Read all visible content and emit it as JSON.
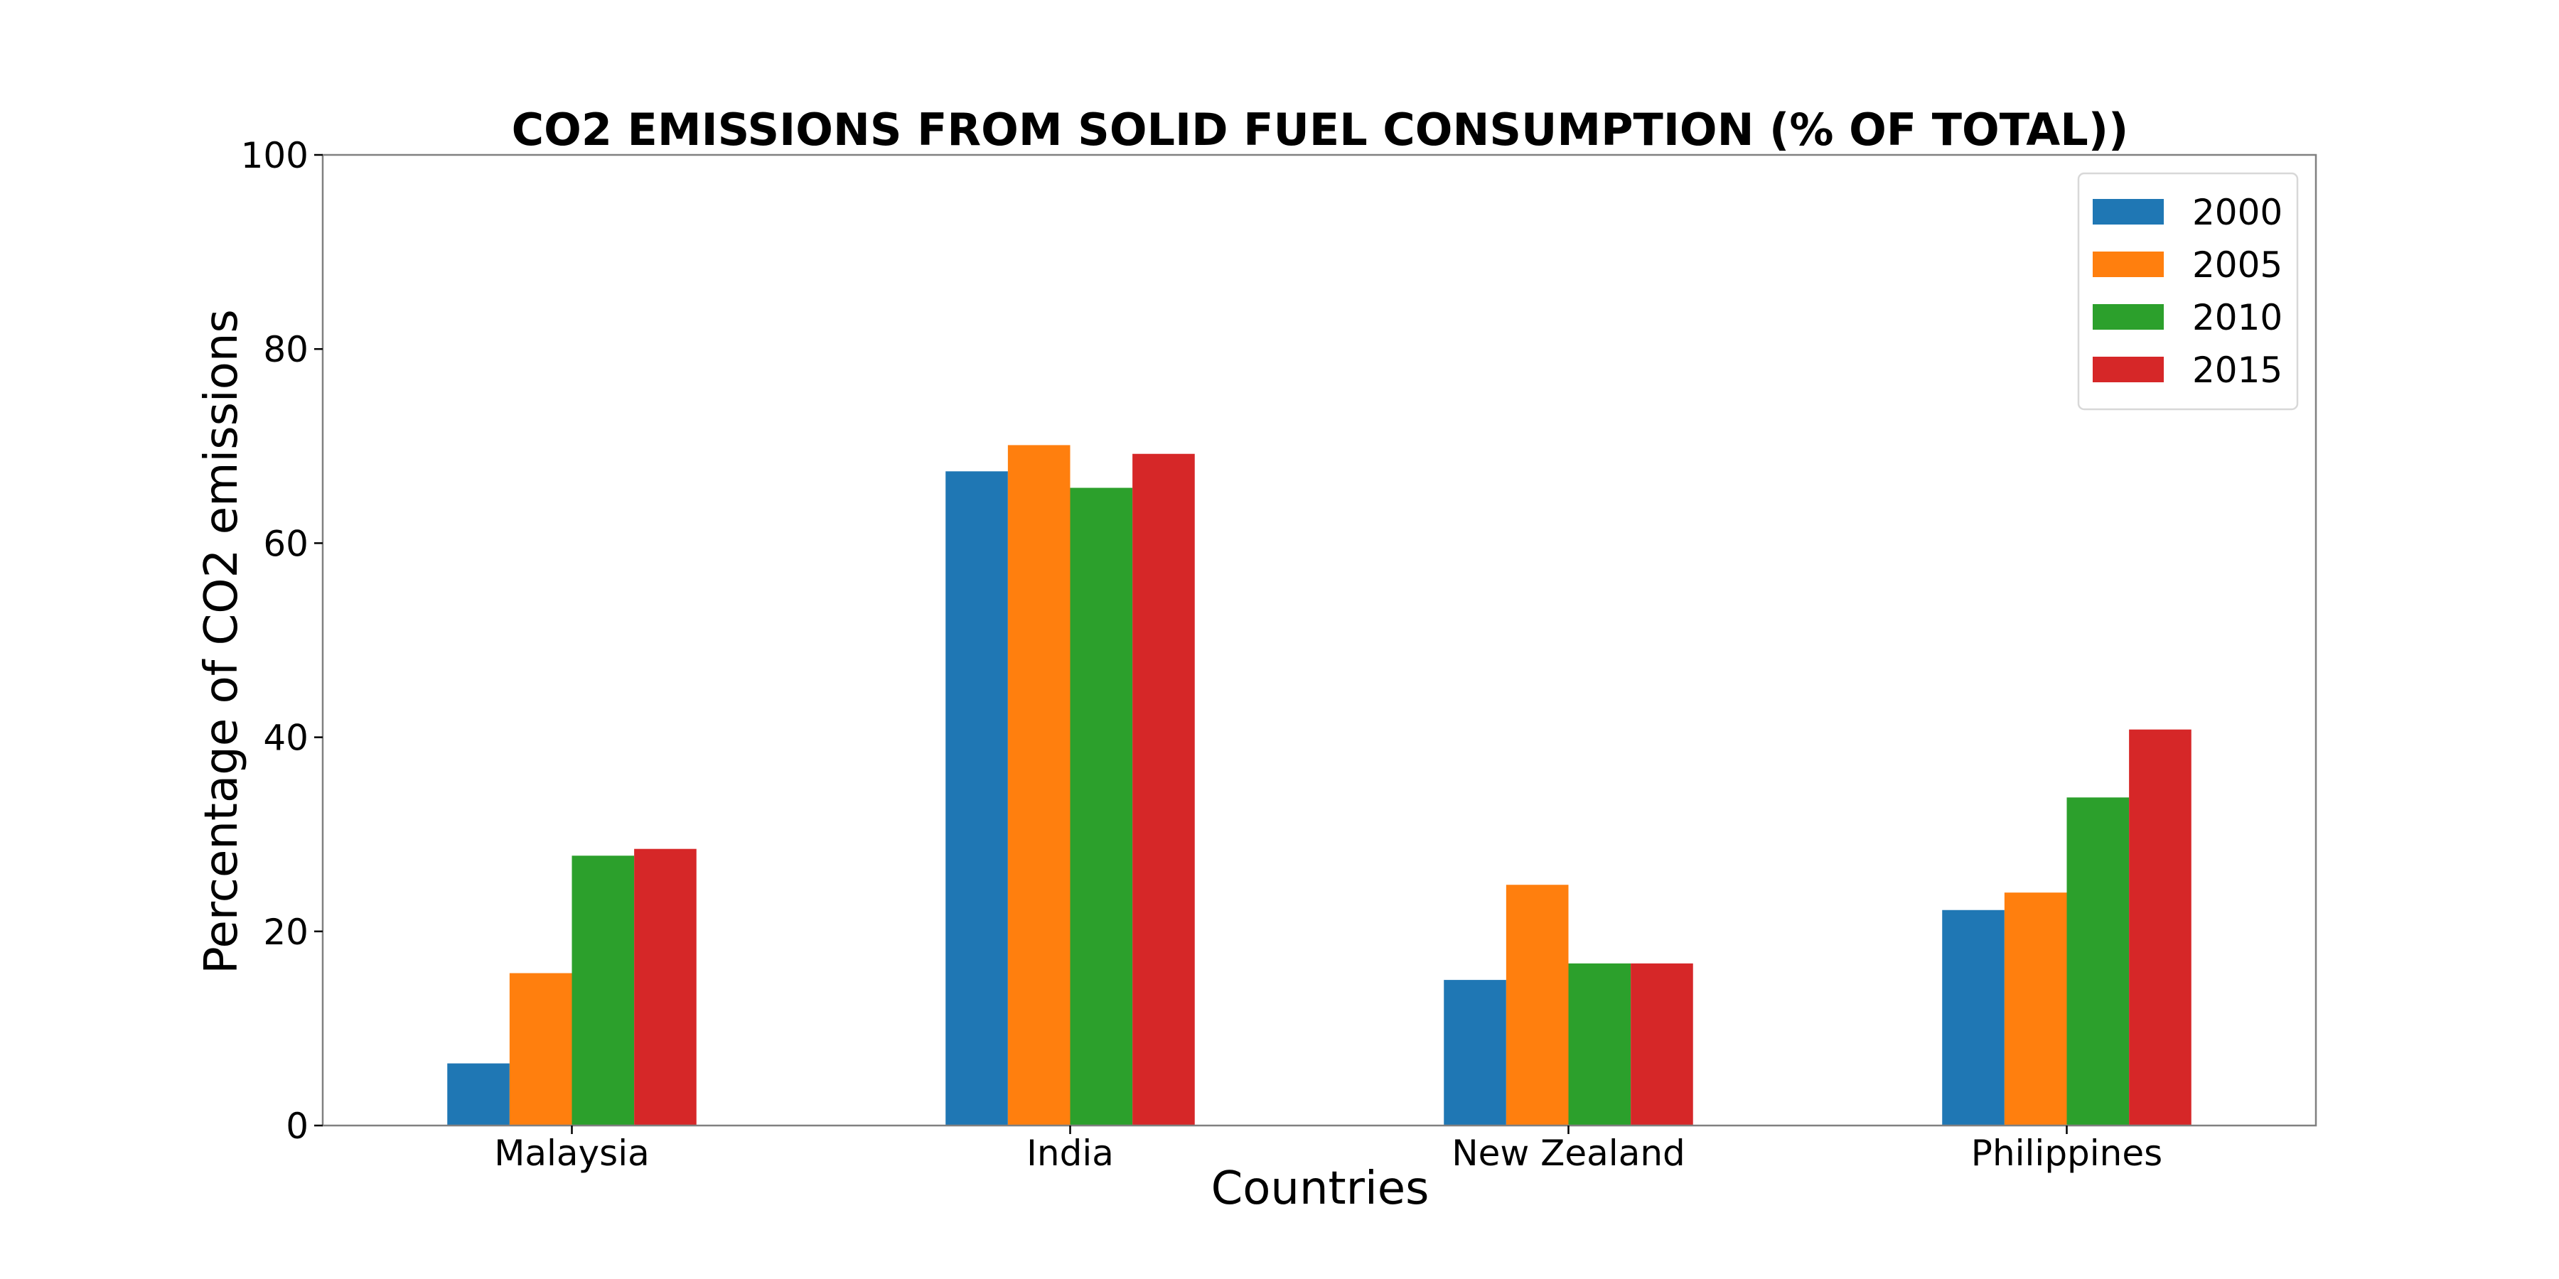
{
  "chart_data": {
    "type": "bar",
    "title": "CO2 EMISSIONS FROM SOLID FUEL CONSUMPTION (% OF TOTAL))",
    "xlabel": "Countries",
    "ylabel": "Percentage of CO2 emissions",
    "ylim": [
      0,
      100
    ],
    "yticks": [
      "0",
      "20",
      "40",
      "60",
      "80",
      "100"
    ],
    "grid": false,
    "legend_position": "top-right",
    "categories": [
      "Malaysia",
      "India",
      "New Zealand",
      "Philippines"
    ],
    "series": [
      {
        "name": "2000",
        "color": "#1f77b4",
        "values": [
          6.4,
          67.4,
          15.0,
          22.2
        ]
      },
      {
        "name": "2005",
        "color": "#ff7f0e",
        "values": [
          15.7,
          70.1,
          24.8,
          24.0
        ]
      },
      {
        "name": "2010",
        "color": "#2ca02c",
        "values": [
          27.8,
          65.7,
          16.7,
          33.8
        ]
      },
      {
        "name": "2015",
        "color": "#d62728",
        "values": [
          28.5,
          69.2,
          16.7,
          40.8
        ]
      }
    ]
  }
}
